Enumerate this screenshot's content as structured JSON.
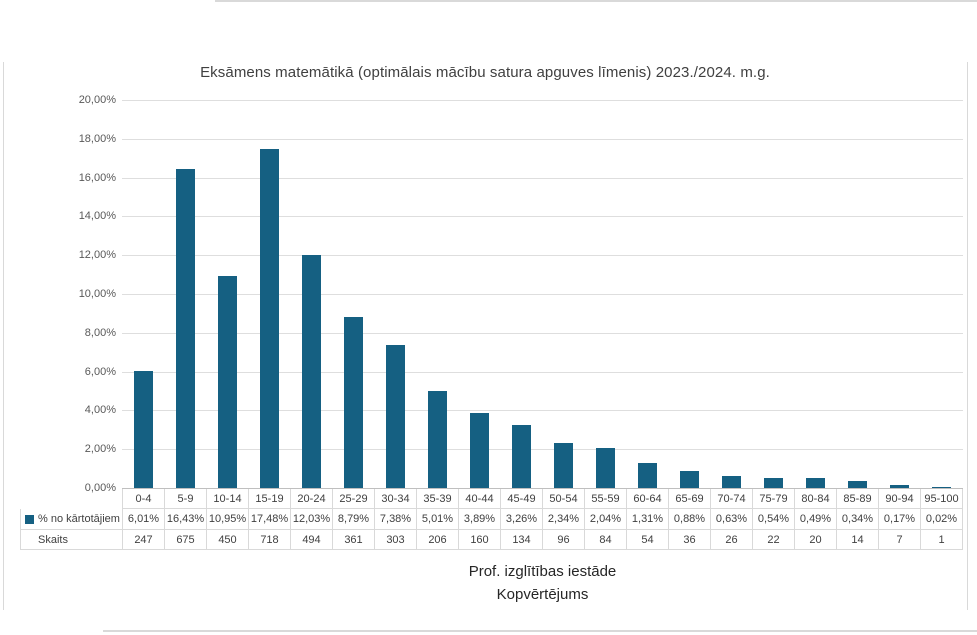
{
  "title": "Eksāmens matemātikā (optimālais mācību satura apguves līmenis) 2023./2024. m.g.",
  "colors": {
    "bar": "#156082",
    "gridline": "#dedede",
    "axis_line": "#bfbfbf",
    "table_border": "#d9d9d9",
    "title_text": "#404040",
    "tick_text": "#595959",
    "table_text": "#404040",
    "axis_title_text": "#262626"
  },
  "y_axis": {
    "ticks": [
      "20,00%",
      "18,00%",
      "16,00%",
      "14,00%",
      "12,00%",
      "10,00%",
      "8,00%",
      "6,00%",
      "4,00%",
      "2,00%",
      "0,00%"
    ],
    "min": 0,
    "max": 20,
    "step": 2
  },
  "x_axis_titles": {
    "line1": "Prof. izglītības iestāde",
    "line2": "Kopvērtējums"
  },
  "legend": {
    "label": "% no kārtotājiem",
    "swatch_color": "#156082"
  },
  "chart_data": {
    "type": "bar",
    "title": "Eksāmens matemātikā (optimālais mācību satura apguves līmenis) 2023./2024. m.g.",
    "categories": [
      "0-4",
      "5-9",
      "10-14",
      "15-19",
      "20-24",
      "25-29",
      "30-34",
      "35-39",
      "40-44",
      "45-49",
      "50-54",
      "55-59",
      "60-64",
      "65-69",
      "70-74",
      "75-79",
      "80-84",
      "85-89",
      "90-94",
      "95-100"
    ],
    "series": [
      {
        "name": "% no kārtotājiem",
        "unit": "percent",
        "values": [
          6.01,
          16.43,
          10.95,
          17.48,
          12.03,
          8.79,
          7.38,
          5.01,
          3.89,
          3.26,
          2.34,
          2.04,
          1.31,
          0.88,
          0.63,
          0.54,
          0.49,
          0.34,
          0.17,
          0.02
        ],
        "labels": [
          "6,01%",
          "16,43%",
          "10,95%",
          "17,48%",
          "12,03%",
          "8,79%",
          "7,38%",
          "5,01%",
          "3,89%",
          "3,26%",
          "2,34%",
          "2,04%",
          "1,31%",
          "0,88%",
          "0,63%",
          "0,54%",
          "0,49%",
          "0,34%",
          "0,17%",
          "0,02%"
        ]
      },
      {
        "name": "Skaits",
        "unit": "count",
        "values": [
          247,
          675,
          450,
          718,
          494,
          361,
          303,
          206,
          160,
          134,
          96,
          84,
          54,
          36,
          26,
          22,
          20,
          14,
          7,
          1
        ],
        "labels": [
          "247",
          "675",
          "450",
          "718",
          "494",
          "361",
          "303",
          "206",
          "160",
          "134",
          "96",
          "84",
          "54",
          "36",
          "26",
          "22",
          "20",
          "14",
          "7",
          "1"
        ]
      }
    ],
    "xlabel_lines": [
      "Prof. izglītības iestāde",
      "Kopvērtējums"
    ],
    "ylabel": "",
    "ylim": [
      0,
      20
    ],
    "y_tick_labels": [
      "20,00%",
      "18,00%",
      "16,00%",
      "14,00%",
      "12,00%",
      "10,00%",
      "8,00%",
      "6,00%",
      "4,00%",
      "2,00%",
      "0,00%"
    ],
    "grid": true,
    "legend_position": "data-table-left",
    "bar_color": "#156082"
  }
}
